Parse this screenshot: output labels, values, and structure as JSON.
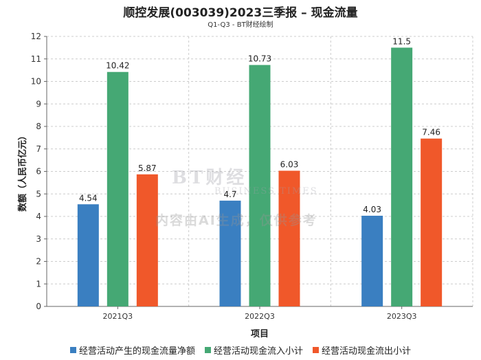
{
  "title": "顺控发展(003039)2023三季报 – 现金流量",
  "subtitle": "Q1-Q3 - BT财经绘制",
  "watermark": {
    "text": "内容由AI生成，仅供参考",
    "logo_main": "BT财经",
    "logo_sub": "BUSINESS TIMES"
  },
  "colors": {
    "series_1": "#3a7fc1",
    "series_2": "#45a874",
    "series_3": "#f0582a",
    "grid": "#cccccc",
    "axis": "#666666"
  },
  "chart_data": {
    "type": "bar",
    "title": "顺控发展(003039)2023三季报 – 现金流量",
    "subtitle": "Q1-Q3 - BT财经绘制",
    "xlabel": "项目",
    "ylabel": "数额（人民币亿元）",
    "categories": [
      "2021Q3",
      "2022Q3",
      "2023Q3"
    ],
    "ylim": [
      0,
      12
    ],
    "yticks": [
      0,
      1,
      2,
      3,
      4,
      5,
      6,
      7,
      8,
      9,
      10,
      11,
      12
    ],
    "grid": true,
    "legend": "bottom",
    "series": [
      {
        "name": "经营活动产生的现金流量净额",
        "values": [
          4.54,
          4.7,
          4.03
        ],
        "labels": [
          "4.54",
          "4.7",
          "4.03"
        ]
      },
      {
        "name": "经营活动现金流入小计",
        "values": [
          10.42,
          10.73,
          11.5
        ],
        "labels": [
          "10.42",
          "10.73",
          "11.5"
        ]
      },
      {
        "name": "经营活动现金流出小计",
        "values": [
          5.87,
          6.03,
          7.46
        ],
        "labels": [
          "5.87",
          "6.03",
          "7.46"
        ]
      }
    ]
  }
}
